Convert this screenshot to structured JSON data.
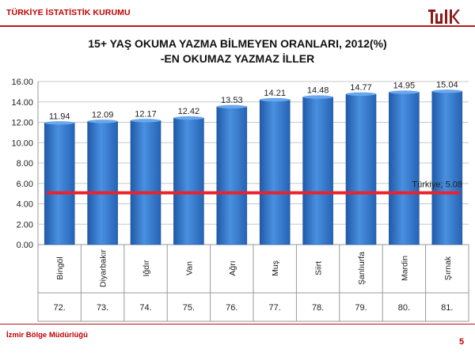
{
  "header": {
    "org_name": "TÜRKİYE İSTATİSTİK KURUMU"
  },
  "logo": {
    "icon": "tuik-logo-icon",
    "color": "#8a1c1c"
  },
  "chart_data": {
    "type": "bar",
    "title": "15+ YAŞ OKUMA YAZMA BİLMEYEN ORANLARI, 2012(%)",
    "subtitle": "-EN OKUMAZ YAZMAZ İLLER",
    "categories": [
      "Bingöl",
      "Diyarbakır",
      "Iğdır",
      "Van",
      "Ağrı",
      "Muş",
      "Siirt",
      "Şanlıurfa",
      "Mardin",
      "Şırnak"
    ],
    "ranks": [
      "72.",
      "73.",
      "74.",
      "75.",
      "76.",
      "77.",
      "78.",
      "79.",
      "80.",
      "81."
    ],
    "values": [
      11.94,
      12.09,
      12.17,
      12.42,
      13.53,
      14.21,
      14.48,
      14.77,
      14.95,
      15.04
    ],
    "value_labels": [
      "11.94",
      "12.09",
      "12.17",
      "12.42",
      "13.53",
      "14.21",
      "14.48",
      "14.77",
      "14.95",
      "15.04"
    ],
    "ylim": [
      0,
      16
    ],
    "yticks": [
      "0.00",
      "2.00",
      "4.00",
      "6.00",
      "8.00",
      "10.00",
      "12.00",
      "14.00",
      "16.00"
    ],
    "reference_line": {
      "value": 5.08,
      "label": "Türkiye; 5.08"
    },
    "grid": true,
    "bar_color": "#3a7fd0",
    "line_color": "#e8232f"
  },
  "footer": {
    "office": "İzmir Bölge Müdürlüğü",
    "page_number": "5"
  }
}
